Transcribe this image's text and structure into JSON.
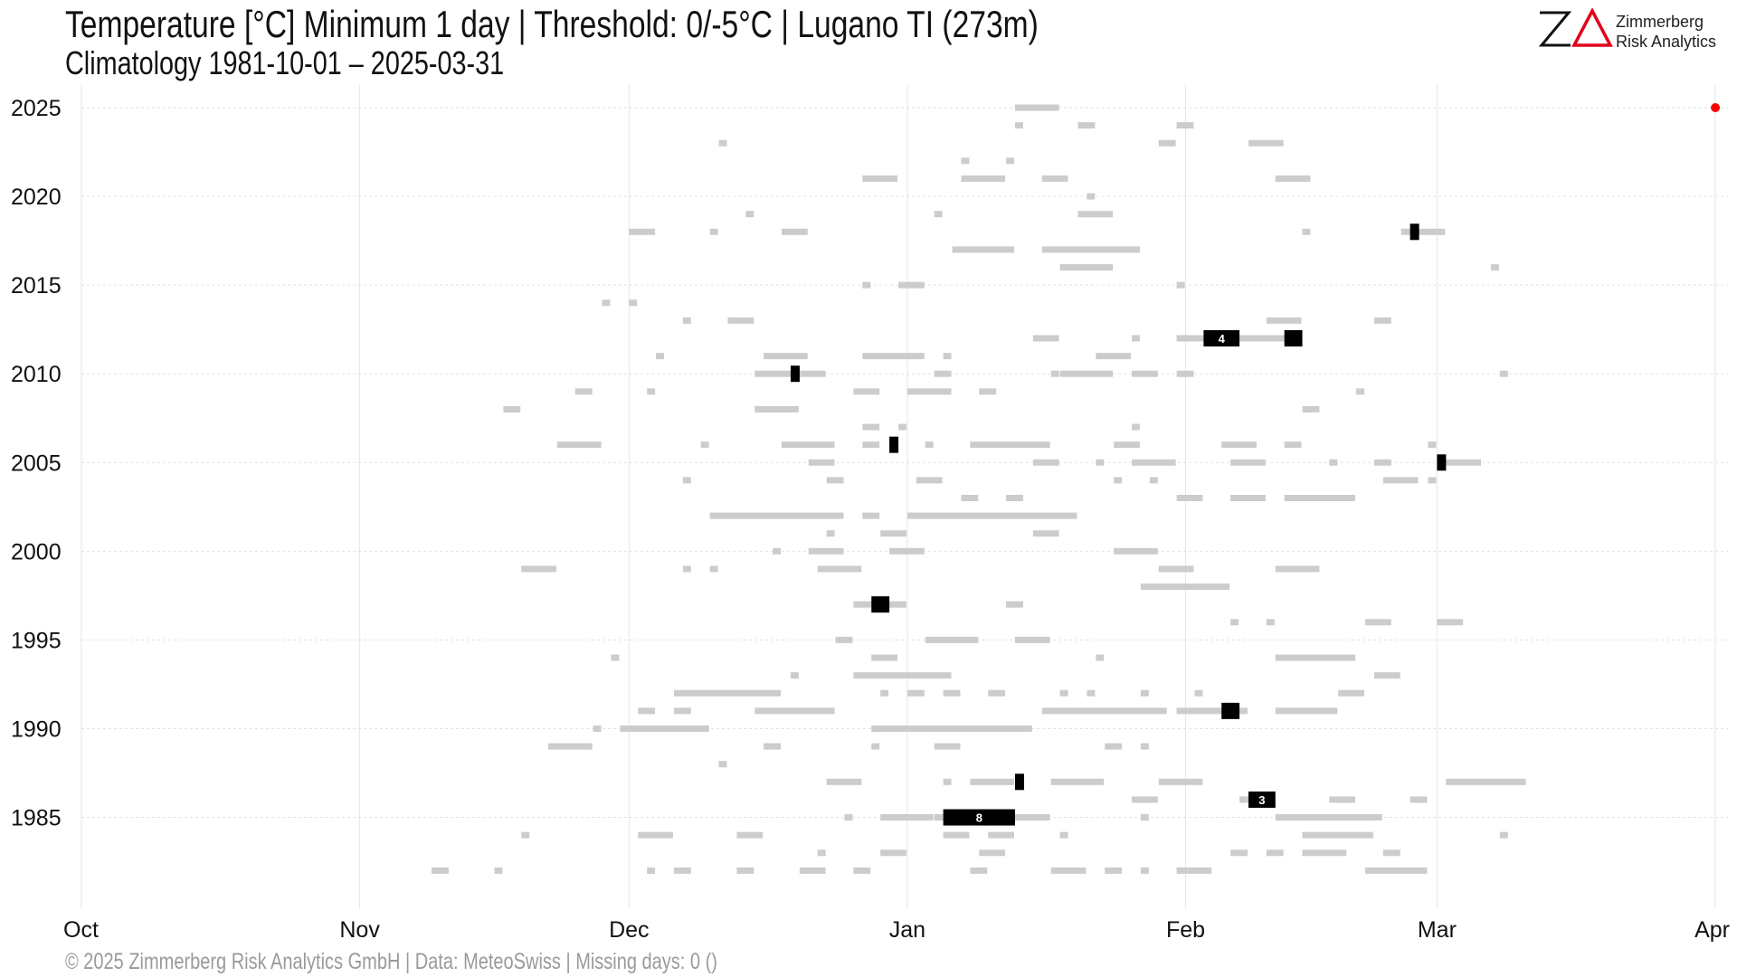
{
  "header": {
    "title": "Temperature [°C] Minimum 1 day | Threshold: 0/-5°C | Lugano  TI (273m)",
    "subtitle": "Climatology 1981-10-01 – 2025-03-31"
  },
  "logo": {
    "name_line1": "Zimmerberg",
    "name_line2": "Risk Analytics",
    "accent_color": "#e3001b"
  },
  "footer": {
    "text": "©  2025 Zimmerberg Risk Analytics GmbH | Data: MeteoSwiss | Missing days: 0 ()"
  },
  "chart_data": {
    "type": "scatter",
    "title": "Temperature [°C] Minimum 1 day | Threshold: 0/-5°C | Lugano  TI (273m)",
    "subtitle": "Climatology 1981-10-01 – 2025-03-31",
    "xlabel": "",
    "ylabel": "",
    "x_axis": {
      "tick_labels": [
        "Oct",
        "Nov",
        "Dec",
        "Jan",
        "Feb",
        "Mar",
        "Apr"
      ],
      "ticks_day_of_season": [
        0,
        31,
        61,
        92,
        123,
        151,
        182
      ],
      "range": [
        0,
        183
      ]
    },
    "y_axis": {
      "ticks": [
        1985,
        1990,
        1995,
        2000,
        2005,
        2010,
        2015,
        2020,
        2025
      ],
      "range": [
        1981,
        2026
      ]
    },
    "grid": true,
    "colors": {
      "below_0": "#cccccc",
      "below_minus5": "#000000",
      "current": "#ff0000"
    },
    "current_marker": {
      "season": 2025,
      "day": 181
    },
    "series": [
      {
        "name": "below 0°C",
        "runs": [
          [
            2025,
            104,
            5
          ],
          [
            2024,
            104,
            1
          ],
          [
            2024,
            111,
            2
          ],
          [
            2024,
            122,
            2
          ],
          [
            2023,
            71,
            1
          ],
          [
            2023,
            120,
            2
          ],
          [
            2023,
            130,
            4
          ],
          [
            2022,
            98,
            1
          ],
          [
            2022,
            103,
            1
          ],
          [
            2021,
            87,
            4
          ],
          [
            2021,
            98,
            5
          ],
          [
            2021,
            107,
            3
          ],
          [
            2021,
            133,
            4
          ],
          [
            2020,
            112,
            1
          ],
          [
            2019,
            74,
            1
          ],
          [
            2019,
            95,
            1
          ],
          [
            2019,
            111,
            4
          ],
          [
            2018,
            61,
            3
          ],
          [
            2018,
            70,
            1
          ],
          [
            2018,
            78,
            3
          ],
          [
            2018,
            136,
            1
          ],
          [
            2018,
            147,
            5
          ],
          [
            2017,
            97,
            7
          ],
          [
            2017,
            107,
            11
          ],
          [
            2016,
            109,
            6
          ],
          [
            2016,
            157,
            1
          ],
          [
            2015,
            87,
            1
          ],
          [
            2015,
            91,
            3
          ],
          [
            2015,
            122,
            1
          ],
          [
            2014,
            58,
            1
          ],
          [
            2014,
            61,
            1
          ],
          [
            2013,
            67,
            1
          ],
          [
            2013,
            72,
            3
          ],
          [
            2013,
            132,
            4
          ],
          [
            2013,
            144,
            2
          ],
          [
            2012,
            106,
            3
          ],
          [
            2012,
            117,
            1
          ],
          [
            2012,
            122,
            13
          ],
          [
            2011,
            64,
            1
          ],
          [
            2011,
            76,
            5
          ],
          [
            2011,
            87,
            7
          ],
          [
            2011,
            96,
            1
          ],
          [
            2011,
            113,
            4
          ],
          [
            2010,
            75,
            8
          ],
          [
            2010,
            95,
            2
          ],
          [
            2010,
            108,
            1
          ],
          [
            2010,
            109,
            6
          ],
          [
            2010,
            117,
            3
          ],
          [
            2010,
            122,
            2
          ],
          [
            2010,
            158,
            1
          ],
          [
            2009,
            55,
            2
          ],
          [
            2009,
            63,
            1
          ],
          [
            2009,
            86,
            3
          ],
          [
            2009,
            92,
            5
          ],
          [
            2009,
            100,
            2
          ],
          [
            2009,
            142,
            1
          ],
          [
            2008,
            47,
            2
          ],
          [
            2008,
            75,
            5
          ],
          [
            2008,
            136,
            2
          ],
          [
            2007,
            87,
            2
          ],
          [
            2007,
            91,
            1
          ],
          [
            2007,
            117,
            1
          ],
          [
            2006,
            53,
            5
          ],
          [
            2006,
            69,
            1
          ],
          [
            2006,
            78,
            6
          ],
          [
            2006,
            87,
            2
          ],
          [
            2006,
            94,
            1
          ],
          [
            2006,
            99,
            9
          ],
          [
            2006,
            115,
            3
          ],
          [
            2006,
            127,
            4
          ],
          [
            2006,
            134,
            2
          ],
          [
            2006,
            150,
            1
          ],
          [
            2005,
            81,
            3
          ],
          [
            2005,
            106,
            3
          ],
          [
            2005,
            113,
            1
          ],
          [
            2005,
            117,
            5
          ],
          [
            2005,
            128,
            4
          ],
          [
            2005,
            139,
            1
          ],
          [
            2005,
            144,
            2
          ],
          [
            2005,
            151,
            5
          ],
          [
            2004,
            67,
            1
          ],
          [
            2004,
            83,
            2
          ],
          [
            2004,
            93,
            3
          ],
          [
            2004,
            115,
            1
          ],
          [
            2004,
            119,
            1
          ],
          [
            2004,
            145,
            4
          ],
          [
            2004,
            150,
            1
          ],
          [
            2003,
            98,
            2
          ],
          [
            2003,
            103,
            2
          ],
          [
            2003,
            122,
            3
          ],
          [
            2003,
            128,
            4
          ],
          [
            2003,
            134,
            8
          ],
          [
            2002,
            70,
            15
          ],
          [
            2002,
            87,
            2
          ],
          [
            2002,
            92,
            19
          ],
          [
            2001,
            83,
            1
          ],
          [
            2001,
            89,
            3
          ],
          [
            2001,
            106,
            3
          ],
          [
            2000,
            77,
            1
          ],
          [
            2000,
            81,
            4
          ],
          [
            2000,
            90,
            4
          ],
          [
            2000,
            115,
            5
          ],
          [
            1999,
            49,
            4
          ],
          [
            1999,
            67,
            1
          ],
          [
            1999,
            70,
            1
          ],
          [
            1999,
            82,
            5
          ],
          [
            1999,
            120,
            4
          ],
          [
            1999,
            133,
            5
          ],
          [
            1998,
            118,
            10
          ],
          [
            1997,
            86,
            6
          ],
          [
            1997,
            103,
            2
          ],
          [
            1996,
            128,
            1
          ],
          [
            1996,
            132,
            1
          ],
          [
            1996,
            143,
            3
          ],
          [
            1996,
            151,
            3
          ],
          [
            1995,
            84,
            2
          ],
          [
            1995,
            94,
            6
          ],
          [
            1995,
            104,
            4
          ],
          [
            1994,
            59,
            1
          ],
          [
            1994,
            88,
            3
          ],
          [
            1994,
            113,
            1
          ],
          [
            1994,
            133,
            9
          ],
          [
            1993,
            79,
            1
          ],
          [
            1993,
            86,
            11
          ],
          [
            1993,
            144,
            3
          ],
          [
            1992,
            66,
            12
          ],
          [
            1992,
            89,
            1
          ],
          [
            1992,
            92,
            2
          ],
          [
            1992,
            96,
            2
          ],
          [
            1992,
            101,
            2
          ],
          [
            1992,
            109,
            1
          ],
          [
            1992,
            112,
            1
          ],
          [
            1992,
            118,
            1
          ],
          [
            1992,
            124,
            1
          ],
          [
            1992,
            140,
            3
          ],
          [
            1991,
            62,
            2
          ],
          [
            1991,
            66,
            2
          ],
          [
            1991,
            75,
            9
          ],
          [
            1991,
            107,
            14
          ],
          [
            1991,
            122,
            8
          ],
          [
            1991,
            133,
            7
          ],
          [
            1990,
            57,
            1
          ],
          [
            1990,
            60,
            10
          ],
          [
            1990,
            88,
            18
          ],
          [
            1989,
            52,
            5
          ],
          [
            1989,
            76,
            2
          ],
          [
            1989,
            88,
            1
          ],
          [
            1989,
            95,
            3
          ],
          [
            1989,
            114,
            2
          ],
          [
            1989,
            118,
            1
          ],
          [
            1988,
            71,
            1
          ],
          [
            1987,
            83,
            4
          ],
          [
            1987,
            96,
            1
          ],
          [
            1987,
            99,
            5
          ],
          [
            1987,
            108,
            6
          ],
          [
            1987,
            120,
            5
          ],
          [
            1987,
            152,
            9
          ],
          [
            1986,
            117,
            3
          ],
          [
            1986,
            129,
            2
          ],
          [
            1986,
            139,
            3
          ],
          [
            1986,
            148,
            2
          ],
          [
            1985,
            85,
            1
          ],
          [
            1985,
            89,
            6
          ],
          [
            1985,
            95,
            13
          ],
          [
            1985,
            118,
            1
          ],
          [
            1985,
            133,
            12
          ],
          [
            1984,
            49,
            1
          ],
          [
            1984,
            62,
            4
          ],
          [
            1984,
            73,
            3
          ],
          [
            1984,
            96,
            3
          ],
          [
            1984,
            101,
            3
          ],
          [
            1984,
            109,
            1
          ],
          [
            1984,
            136,
            8
          ],
          [
            1984,
            158,
            1
          ],
          [
            1983,
            82,
            1
          ],
          [
            1983,
            89,
            3
          ],
          [
            1983,
            100,
            3
          ],
          [
            1983,
            128,
            2
          ],
          [
            1983,
            132,
            2
          ],
          [
            1983,
            136,
            5
          ],
          [
            1983,
            145,
            2
          ],
          [
            1982,
            39,
            2
          ],
          [
            1982,
            46,
            1
          ],
          [
            1982,
            63,
            1
          ],
          [
            1982,
            66,
            2
          ],
          [
            1982,
            73,
            2
          ],
          [
            1982,
            80,
            3
          ],
          [
            1982,
            86,
            2
          ],
          [
            1982,
            99,
            2
          ],
          [
            1982,
            108,
            4
          ],
          [
            1982,
            114,
            2
          ],
          [
            1982,
            118,
            1
          ],
          [
            1982,
            122,
            4
          ],
          [
            1982,
            143,
            7
          ]
        ]
      },
      {
        "name": "below -5°C",
        "runs": [
          [
            2018,
            148,
            1,
            ""
          ],
          [
            2012,
            125,
            4,
            "4"
          ],
          [
            2012,
            134,
            2,
            ""
          ],
          [
            2010,
            79,
            1,
            ""
          ],
          [
            2006,
            90,
            1,
            ""
          ],
          [
            2005,
            151,
            1,
            ""
          ],
          [
            1997,
            88,
            2,
            ""
          ],
          [
            1991,
            127,
            2,
            ""
          ],
          [
            1987,
            104,
            1,
            ""
          ],
          [
            1986,
            130,
            3,
            "3"
          ],
          [
            1985,
            96,
            8,
            "8"
          ]
        ]
      }
    ]
  }
}
